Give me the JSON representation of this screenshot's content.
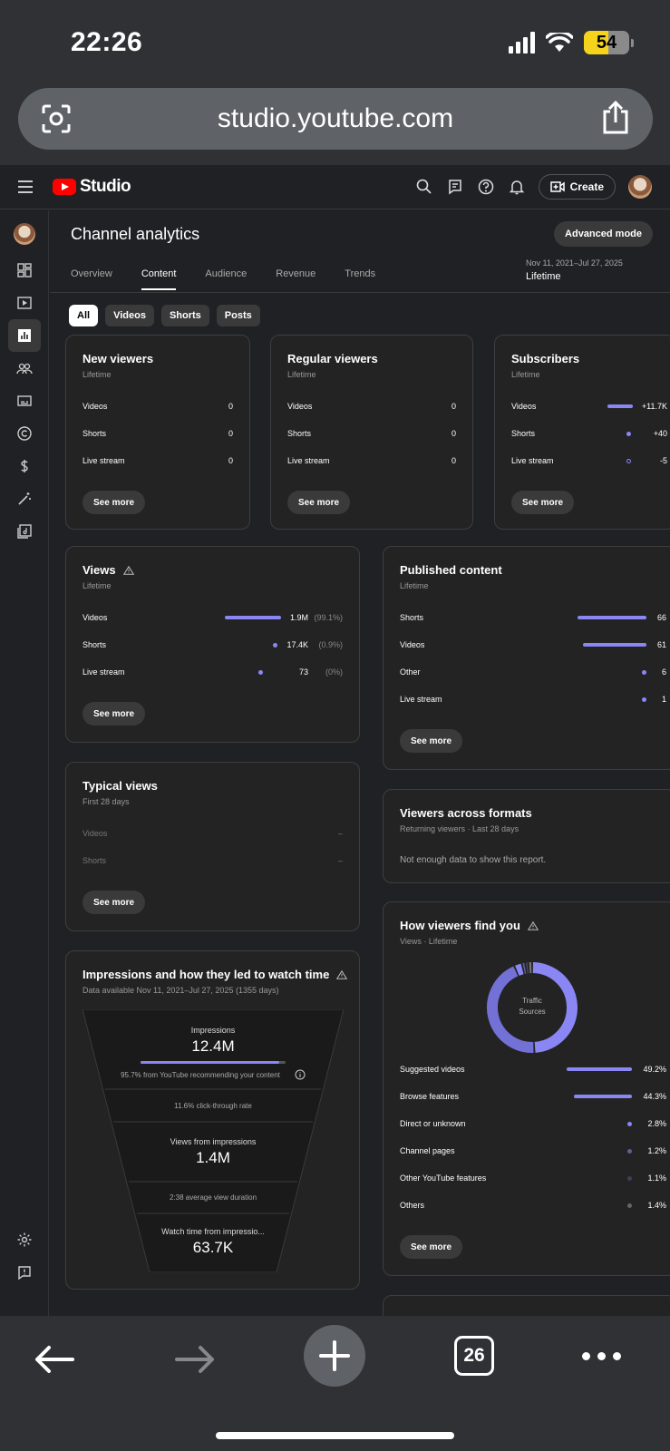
{
  "status": {
    "time": "22:26",
    "battery": "54"
  },
  "browser": {
    "url": "studio.youtube.com",
    "tab_count": "26"
  },
  "topbar": {
    "logo_text": "Studio",
    "create_label": "Create"
  },
  "page": {
    "title": "Channel analytics",
    "advanced_label": "Advanced mode",
    "tabs": [
      "Overview",
      "Content",
      "Audience",
      "Revenue",
      "Trends"
    ],
    "active_tab": "Content",
    "date_range": "Nov 11, 2021–Jul 27, 2025",
    "period": "Lifetime",
    "chips": [
      "All",
      "Videos",
      "Shorts",
      "Posts"
    ]
  },
  "see_more": "See more",
  "new_viewers": {
    "title": "New viewers",
    "subtitle": "Lifetime",
    "rows": [
      {
        "label": "Videos",
        "value": "0"
      },
      {
        "label": "Shorts",
        "value": "0"
      },
      {
        "label": "Live stream",
        "value": "0"
      }
    ]
  },
  "regular_viewers": {
    "title": "Regular viewers",
    "subtitle": "Lifetime",
    "rows": [
      {
        "label": "Videos",
        "value": "0"
      },
      {
        "label": "Shorts",
        "value": "0"
      },
      {
        "label": "Live stream",
        "value": "0"
      }
    ]
  },
  "subscribers": {
    "title": "Subscribers",
    "subtitle": "Lifetime",
    "rows": [
      {
        "label": "Videos",
        "value": "+11.7K"
      },
      {
        "label": "Shorts",
        "value": "+40"
      },
      {
        "label": "Live stream",
        "value": "-5"
      }
    ]
  },
  "views": {
    "title": "Views",
    "subtitle": "Lifetime",
    "rows": [
      {
        "label": "Videos",
        "value": "1.9M",
        "pct": "(99.1%)"
      },
      {
        "label": "Shorts",
        "value": "17.4K",
        "pct": "(0.9%)"
      },
      {
        "label": "Live stream",
        "value": "73",
        "pct": "(0%)"
      }
    ]
  },
  "published": {
    "title": "Published content",
    "subtitle": "Lifetime",
    "rows": [
      {
        "label": "Shorts",
        "value": "66"
      },
      {
        "label": "Videos",
        "value": "61"
      },
      {
        "label": "Other",
        "value": "6"
      },
      {
        "label": "Live stream",
        "value": "1"
      }
    ]
  },
  "typical_views": {
    "title": "Typical views",
    "subtitle": "First 28 days",
    "rows": [
      {
        "label": "Videos",
        "value": "–"
      },
      {
        "label": "Shorts",
        "value": "–"
      }
    ]
  },
  "viewers_formats": {
    "title": "Viewers across formats",
    "subtitle": "Returning viewers · Last 28 days",
    "message": "Not enough data to show this report."
  },
  "impressions": {
    "title": "Impressions and how they led to watch time",
    "subtitle": "Data available Nov 11, 2021–Jul 27, 2025 (1355 days)",
    "impressions_label": "Impressions",
    "impressions_value": "12.4M",
    "recommend_note": "95.7% from YouTube recommending your content",
    "ctr_note": "11.6% click-through rate",
    "views_label": "Views from impressions",
    "views_value": "1.4M",
    "duration_note": "2:38 average view duration",
    "watch_label": "Watch time from impressio...",
    "watch_value": "63.7K"
  },
  "traffic": {
    "title": "How viewers find you",
    "subtitle": "Views · Lifetime",
    "donut_label_1": "Traffic",
    "donut_label_2": "Sources",
    "rows": [
      {
        "label": "Suggested videos",
        "value": "49.2%",
        "share": 49.2
      },
      {
        "label": "Browse features",
        "value": "44.3%",
        "share": 44.3
      },
      {
        "label": "Direct or unknown",
        "value": "2.8%",
        "share": 2.8
      },
      {
        "label": "Channel pages",
        "value": "1.2%",
        "share": 1.2
      },
      {
        "label": "Other YouTube features",
        "value": "1.1%",
        "share": 1.1
      },
      {
        "label": "Others",
        "value": "1.4%",
        "share": 1.4
      }
    ]
  },
  "colors": {
    "accent": "#8a87f5",
    "background": "#202124",
    "card": "#232323"
  }
}
